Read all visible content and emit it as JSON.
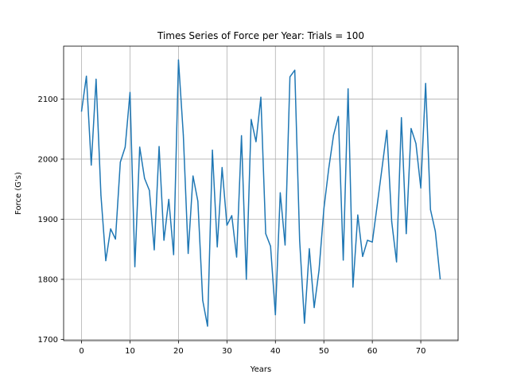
{
  "chart_data": {
    "type": "line",
    "title": "Times Series of Force per Year: Trials = 100",
    "xlabel": "Years",
    "ylabel": "Force (G's)",
    "xlim": [
      -3.7,
      77.7
    ],
    "ylim": [
      1698,
      2188
    ],
    "xticks": [
      0,
      10,
      20,
      30,
      40,
      50,
      60,
      70
    ],
    "yticks": [
      1700,
      1800,
      1900,
      2000,
      2100
    ],
    "grid": true,
    "series": [
      {
        "color": "#1f77b4",
        "x": [
          0,
          1,
          2,
          3,
          4,
          5,
          6,
          7,
          8,
          9,
          10,
          11,
          12,
          13,
          14,
          15,
          16,
          17,
          18,
          19,
          20,
          21,
          22,
          23,
          24,
          25,
          26,
          27,
          28,
          29,
          30,
          31,
          32,
          33,
          34,
          35,
          36,
          37,
          38,
          39,
          40,
          41,
          42,
          43,
          44,
          45,
          46,
          47,
          48,
          49,
          50,
          51,
          52,
          53,
          54,
          55,
          56,
          57,
          58,
          59,
          60,
          61,
          62,
          63,
          64,
          65,
          66,
          67,
          68,
          69,
          70,
          71,
          72,
          73,
          74
        ],
        "values": [
          2080,
          2138,
          1990,
          2133,
          1940,
          1831,
          1884,
          1867,
          1995,
          2020,
          2111,
          1821,
          2020,
          1968,
          1948,
          1849,
          2021,
          1865,
          1933,
          1841,
          2165,
          2040,
          1843,
          1972,
          1930,
          1765,
          1722,
          2015,
          1854,
          1986,
          1890,
          1906,
          1837,
          2039,
          1800,
          2066,
          2029,
          2103,
          1876,
          1855,
          1741,
          1944,
          1857,
          2137,
          2148,
          1865,
          1727,
          1851,
          1753,
          1815,
          1917,
          1984,
          2040,
          2071,
          1832,
          2117,
          1787,
          1907,
          1838,
          1865,
          1862,
          1923,
          1985,
          2048,
          1896,
          1829,
          2069,
          1876,
          2051,
          2026,
          1952,
          2126,
          1916,
          1880,
          1801
        ]
      }
    ]
  }
}
